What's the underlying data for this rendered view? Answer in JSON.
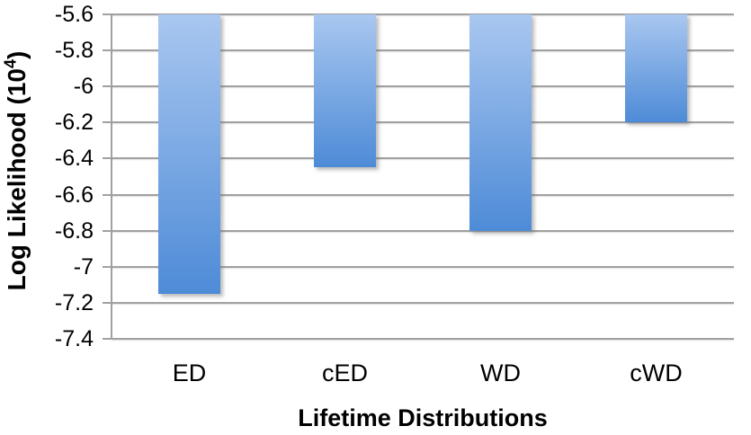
{
  "chart_data": {
    "type": "bar",
    "title": "",
    "categories": [
      "ED",
      "cED",
      "WD",
      "cWD"
    ],
    "values": [
      -7.15,
      -6.45,
      -6.8,
      -6.2
    ],
    "xlabel": "Lifetime Distributions",
    "ylabel": "Log Likelihood (10⁴)",
    "ylabel_prefix": "Log Likelihood (10",
    "ylabel_exponent": "4",
    "ylabel_suffix": ")",
    "ylim": [
      -7.4,
      -5.6
    ],
    "ytick_step": 0.2,
    "yticks": [
      "-5.6",
      "-5.8",
      "-6",
      "-6.2",
      "-6.4",
      "-6.6",
      "-6.8",
      "-7",
      "-7.2",
      "-7.4"
    ],
    "grid": true,
    "legend": "none",
    "bars_anchor": "top",
    "colors": {
      "bar_gradient_top": "#a9c7f0",
      "bar_gradient_bottom": "#4e8bd7",
      "gridline": "#a1a1a1",
      "axis": "#a1a1a1",
      "text": "#000000",
      "background": "#ffffff"
    }
  }
}
